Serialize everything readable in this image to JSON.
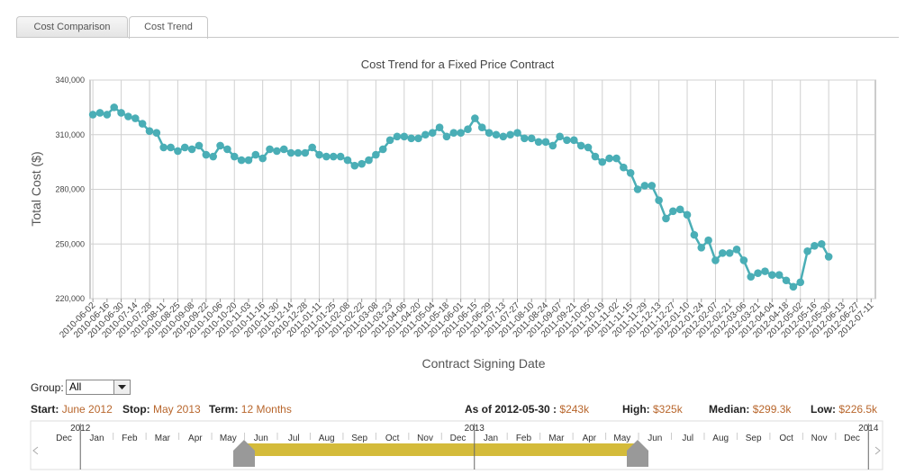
{
  "tabs": [
    "Cost Comparison",
    "Cost Trend"
  ],
  "chart_data": {
    "type": "line",
    "title": "Cost Trend for a Fixed Price Contract",
    "y_label": "Total Cost ($)",
    "x_label": "Contract Signing Date",
    "color": "#4aaeb6",
    "grid": true,
    "categories": [
      "2010-06-02",
      null,
      "2010-06-16",
      null,
      "2010-06-30",
      null,
      "2010-07-14",
      null,
      "2010-07-28",
      null,
      "2010-08-11",
      null,
      "2010-08-25",
      null,
      "2010-09-08",
      null,
      "2010-09-22",
      null,
      "2010-10-06",
      null,
      "2010-10-20",
      null,
      "2010-11-03",
      null,
      "2010-11-16",
      null,
      "2010-11-30",
      null,
      "2010-12-14",
      null,
      "2010-12-28",
      null,
      "2011-01-11",
      null,
      "2011-01-25",
      null,
      "2011-02-08",
      null,
      "2011-02-22",
      null,
      "2011-03-08",
      null,
      "2011-03-23",
      null,
      "2011-04-06",
      null,
      "2011-04-20",
      null,
      "2011-05-04",
      null,
      "2011-05-18",
      null,
      "2011-06-01",
      null,
      "2011-06-15",
      null,
      "2011-06-29",
      null,
      "2011-07-13",
      null,
      "2011-07-27",
      null,
      "2011-08-10",
      null,
      "2011-08-24",
      null,
      "2011-09-07",
      null,
      "2011-09-21",
      null,
      "2011-10-05",
      null,
      "2011-10-19",
      null,
      "2011-11-02",
      null,
      "2011-11-15",
      null,
      "2011-11-29",
      null,
      "2011-12-13",
      null,
      "2011-12-27",
      null,
      "2012-01-10",
      null,
      "2012-01-24",
      null,
      "2012-02-07",
      null,
      "2012-02-21",
      null,
      "2012-03-06",
      null,
      "2012-03-21",
      null,
      "2012-04-04",
      null,
      "2012-04-18",
      null,
      "2012-05-02",
      null,
      "2012-05-16",
      null,
      "2012-05-30",
      null,
      "2012-06-13",
      null,
      "2012-06-27",
      null,
      "2012-07-11"
    ],
    "values": [
      321000,
      322000,
      321000,
      325000,
      322000,
      320000,
      319000,
      316000,
      312000,
      311000,
      303000,
      303000,
      301000,
      303000,
      302000,
      304000,
      299000,
      298000,
      304000,
      302000,
      298000,
      296000,
      296000,
      299000,
      297000,
      302000,
      301000,
      302000,
      300000,
      300000,
      300000,
      303000,
      299000,
      298000,
      298000,
      298000,
      296000,
      293000,
      294000,
      296000,
      299000,
      302000,
      307000,
      309000,
      309000,
      308000,
      308000,
      310000,
      311000,
      314000,
      309000,
      311000,
      311000,
      313000,
      319000,
      314000,
      311000,
      310000,
      309000,
      310000,
      311000,
      308000,
      308000,
      306000,
      306000,
      304000,
      309000,
      307000,
      307000,
      304000,
      303000,
      298000,
      295000,
      297000,
      297000,
      292000,
      289000,
      280000,
      282000,
      282000,
      274000,
      264000,
      268000,
      269000,
      266000,
      255000,
      248000,
      252000,
      241000,
      245000,
      245000,
      247000,
      241000,
      232000,
      234000,
      235000,
      233000,
      233000,
      230000,
      226500,
      229000,
      246000,
      249000,
      250000,
      243000,
      null,
      null,
      null,
      null,
      null,
      null
    ],
    "ylim": [
      220000,
      340000
    ],
    "yticks": [
      {
        "value": 220000,
        "label": "220,000"
      },
      {
        "value": 250000,
        "label": "250,000"
      },
      {
        "value": 280000,
        "label": "280,000"
      },
      {
        "value": 310000,
        "label": "310,000"
      },
      {
        "value": 340000,
        "label": "340,000"
      }
    ]
  },
  "controls": {
    "group_label": "Group:",
    "group_value": "All",
    "start_label": "Start:",
    "start": "June 2012",
    "stop_label": "Stop:",
    "stop": "May 2013",
    "term_label": "Term:",
    "term": "12 Months",
    "as_of_label": "As of",
    "as_of_date": "2012-05-30 :",
    "as_of_value": "$243k",
    "high_label": "High:",
    "high": "$325k",
    "median_label": "Median:",
    "median": "$299.3k",
    "low_label": "Low:",
    "low": "$226.5k"
  },
  "timeline": {
    "years": [
      "2012",
      "2013",
      "2014"
    ],
    "months": [
      "Dec",
      "Jan",
      "Feb",
      "Mar",
      "Apr",
      "May",
      "Jun",
      "Jul",
      "Aug",
      "Sep",
      "Oct",
      "Nov",
      "Dec",
      "Jan",
      "Feb",
      "Mar",
      "Apr",
      "May",
      "Jun",
      "Jul",
      "Aug",
      "Sep",
      "Oct",
      "Nov",
      "Dec"
    ]
  }
}
